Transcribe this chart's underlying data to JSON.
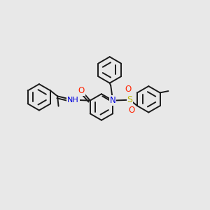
{
  "background_color": "#e8e8e8",
  "line_color": "#1a1a1a",
  "figsize": [
    3.0,
    3.0
  ],
  "dpi": 100,
  "lw": 1.4,
  "r": 0.062,
  "colors": {
    "N": "#0000dd",
    "O": "#ff2200",
    "S": "#bbbb00",
    "C": "#1a1a1a"
  }
}
